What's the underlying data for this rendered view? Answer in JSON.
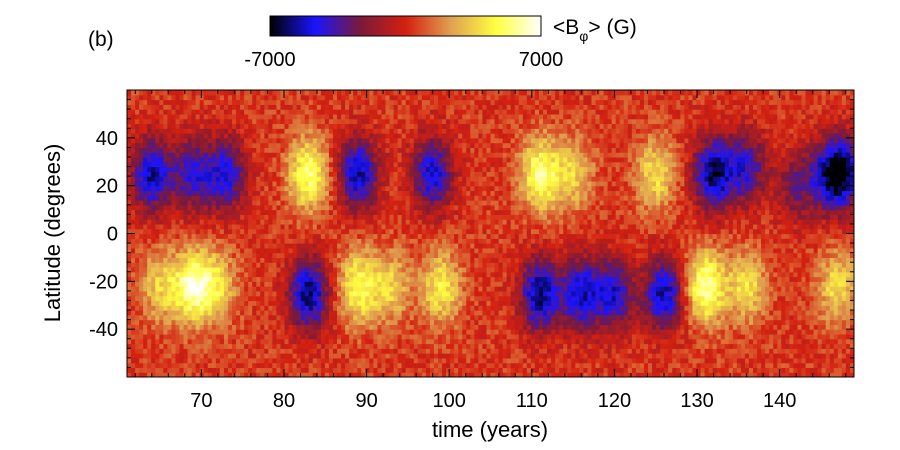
{
  "chart_data": {
    "type": "heatmap",
    "panel_label": "(b)",
    "xlabel": "time (years)",
    "ylabel": "Latitude (degrees)",
    "xlim": [
      61,
      149
    ],
    "ylim": [
      -60,
      60
    ],
    "x_ticks": [
      {
        "value": 70,
        "label": "70"
      },
      {
        "value": 80,
        "label": "80"
      },
      {
        "value": 90,
        "label": "90"
      },
      {
        "value": 100,
        "label": "100"
      },
      {
        "value": 110,
        "label": "110"
      },
      {
        "value": 120,
        "label": "120"
      },
      {
        "value": 130,
        "label": "130"
      },
      {
        "value": 140,
        "label": "140"
      }
    ],
    "y_ticks": [
      {
        "value": 40,
        "label": "40"
      },
      {
        "value": 20,
        "label": "20"
      },
      {
        "value": 0,
        "label": "0"
      },
      {
        "value": -20,
        "label": "-20"
      },
      {
        "value": -40,
        "label": "-40"
      }
    ],
    "colorbar": {
      "label": "<B",
      "label_subscript": "φ",
      "label_suffix": "> (G)",
      "min": -7000,
      "max": 7000,
      "min_label": "-7000",
      "max_label": "7000",
      "colors": [
        "#000000",
        "#1a14ff",
        "#7a1a3a",
        "#d42010",
        "#e0a050",
        "#ffff40",
        "#ffffff"
      ]
    },
    "field": {
      "units": "G",
      "background": 400,
      "features": [
        {
          "t": 64,
          "lat": 25,
          "value": -6000
        },
        {
          "t": 69,
          "lat": 25,
          "value": -4500
        },
        {
          "t": 73,
          "lat": 25,
          "value": -5000
        },
        {
          "t": 65,
          "lat": -22,
          "value": 3000
        },
        {
          "t": 69,
          "lat": -22,
          "value": 5500
        },
        {
          "t": 72,
          "lat": -22,
          "value": 3000
        },
        {
          "t": 83,
          "lat": 25,
          "value": 5000
        },
        {
          "t": 83,
          "lat": -25,
          "value": -6500
        },
        {
          "t": 89,
          "lat": 25,
          "value": -6000
        },
        {
          "t": 89,
          "lat": -22,
          "value": 4500
        },
        {
          "t": 93,
          "lat": -22,
          "value": 3000
        },
        {
          "t": 98,
          "lat": 25,
          "value": -5500
        },
        {
          "t": 99,
          "lat": -22,
          "value": 4000
        },
        {
          "t": 111,
          "lat": 25,
          "value": 5000
        },
        {
          "t": 115,
          "lat": 25,
          "value": 3000
        },
        {
          "t": 111,
          "lat": -25,
          "value": -6500
        },
        {
          "t": 116,
          "lat": -25,
          "value": -5500
        },
        {
          "t": 120,
          "lat": -25,
          "value": -5000
        },
        {
          "t": 125,
          "lat": 25,
          "value": 3500
        },
        {
          "t": 126,
          "lat": -25,
          "value": -6000
        },
        {
          "t": 132,
          "lat": 25,
          "value": -6500
        },
        {
          "t": 136,
          "lat": 28,
          "value": -4500
        },
        {
          "t": 131,
          "lat": -22,
          "value": 5500
        },
        {
          "t": 136,
          "lat": -22,
          "value": 3500
        },
        {
          "t": 142,
          "lat": 20,
          "value": -3000
        },
        {
          "t": 146,
          "lat": 25,
          "value": -5000
        },
        {
          "t": 148,
          "lat": 25,
          "value": -5000
        },
        {
          "t": 147,
          "lat": -22,
          "value": 3500
        }
      ]
    }
  }
}
